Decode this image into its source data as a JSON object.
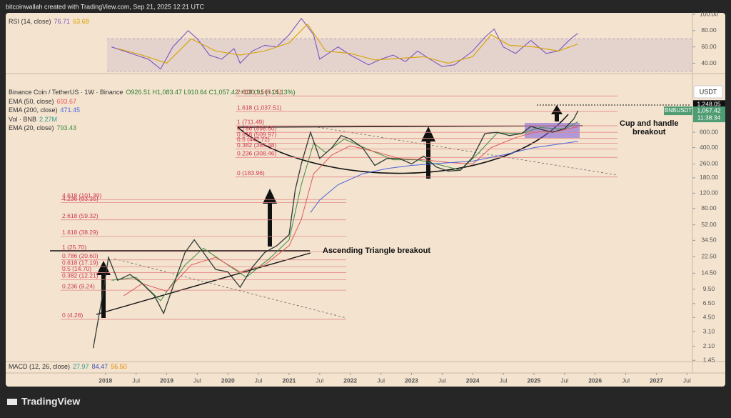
{
  "header": "bitcoinwallah created with TradingView.com, Sep 21, 2025 12:21 UTC",
  "brand": "TradingView",
  "chart_data": [
    {
      "type": "line",
      "log_scale": true,
      "grid": false,
      "ohlc": "O926.51 H1,083.47 L910.64 C1,057.42 +130.91 (+14.13%)",
      "axis_unit": "USDT",
      "xlim": [
        2016.37,
        2027.59
      ],
      "ylim": [
        1.43,
        2050
      ],
      "xticks": [
        2018,
        {
          "value": 2018.5,
          "label": "Jul"
        },
        2019,
        {
          "value": 2019.5,
          "label": "Jul"
        },
        2020,
        {
          "value": 2020.5,
          "label": "Jul"
        },
        2021,
        {
          "value": 2021.5,
          "label": "Jul"
        },
        2022,
        {
          "value": 2022.5,
          "label": "Jul"
        },
        2023,
        {
          "value": 2023.5,
          "label": "Jul"
        },
        2024,
        {
          "value": 2024.5,
          "label": "Jul"
        },
        2025,
        {
          "value": 2025.5,
          "label": "Jul"
        },
        2026,
        {
          "value": 2026.5,
          "label": "Jul"
        },
        2027,
        {
          "value": 2027.5,
          "label": "Jul"
        }
      ],
      "yticks": [
        1.45,
        {
          "value": 2.1,
          "label": "2.10"
        },
        {
          "value": 3.1,
          "label": "3.10"
        },
        {
          "value": 4.5,
          "label": "4.50"
        },
        {
          "value": 6.5,
          "label": "6.50"
        },
        {
          "value": 9.5,
          "label": "9.50"
        },
        {
          "value": 14.5,
          "label": "14.50"
        },
        {
          "value": 22.5,
          "label": "22.50"
        },
        {
          "value": 34.5,
          "label": "34.50"
        },
        {
          "value": 52,
          "label": "52.00"
        },
        {
          "value": 80,
          "label": "80.00"
        },
        {
          "value": 120,
          "label": "120.00"
        },
        {
          "value": 180,
          "label": "180.00"
        },
        {
          "value": 260,
          "label": "260.00"
        },
        {
          "value": 400,
          "label": "400.00"
        },
        {
          "value": 600,
          "label": "600.00"
        }
      ],
      "series": [
        {
          "name": "Binance Coin / TetherUS · 1W · Binance",
          "color": "#2f3b35",
          "x": [
            2017.8,
            2017.95,
            2018.05,
            2018.2,
            2018.4,
            2018.6,
            2018.8,
            2018.95,
            2019.1,
            2019.3,
            2019.45,
            2019.6,
            2019.8,
            2020.0,
            2020.2,
            2020.4,
            2020.6,
            2020.8,
            2021.0,
            2021.1,
            2021.2,
            2021.35,
            2021.5,
            2021.7,
            2021.85,
            2022.0,
            2022.2,
            2022.4,
            2022.6,
            2022.8,
            2023.0,
            2023.2,
            2023.4,
            2023.6,
            2023.8,
            2024.0,
            2024.2,
            2024.4,
            2024.6,
            2024.8,
            2024.95,
            2025.1,
            2025.3,
            2025.5,
            2025.65,
            2025.72
          ],
          "values": [
            2.0,
            8,
            22,
            12,
            14,
            11,
            8,
            5,
            10,
            25,
            35,
            25,
            16,
            15,
            10,
            17,
            25,
            30,
            40,
            130,
            260,
            600,
            300,
            400,
            550,
            500,
            400,
            250,
            300,
            300,
            260,
            320,
            240,
            215,
            220,
            310,
            580,
            600,
            550,
            580,
            700,
            650,
            600,
            660,
            850,
            1057.42
          ]
        },
        {
          "name": "EMA (50, close)",
          "color": "#e05a5a",
          "x": [
            2018.3,
            2018.6,
            2019.0,
            2019.4,
            2019.8,
            2020.2,
            2020.6,
            2021.0,
            2021.2,
            2021.4,
            2021.7,
            2022.0,
            2022.4,
            2022.8,
            2023.2,
            2023.6,
            2024.0,
            2024.3,
            2024.7,
            2025.0,
            2025.4,
            2025.72
          ],
          "values": [
            8,
            11,
            9,
            18,
            22,
            15,
            18,
            30,
            60,
            200,
            330,
            420,
            360,
            300,
            290,
            270,
            260,
            400,
            520,
            600,
            620,
            693.67
          ]
        },
        {
          "name": "EMA (200, close)",
          "color": "#4a63e0",
          "x": [
            2021.35,
            2021.5,
            2021.8,
            2022.2,
            2022.6,
            2023.0,
            2023.5,
            2024.0,
            2024.5,
            2025.0,
            2025.72
          ],
          "values": [
            72,
            100,
            150,
            200,
            230,
            250,
            265,
            280,
            330,
            400,
            471.45
          ]
        },
        {
          "name": "EMA (20, close)",
          "color": "#3f8f3f",
          "x": [
            2018.1,
            2018.5,
            2018.9,
            2019.3,
            2019.6,
            2020.0,
            2020.3,
            2020.7,
            2021.0,
            2021.2,
            2021.4,
            2021.6,
            2021.9,
            2022.3,
            2022.7,
            2023.1,
            2023.5,
            2023.8,
            2024.1,
            2024.4,
            2024.8,
            2025.1,
            2025.5,
            2025.72
          ],
          "values": [
            12,
            13,
            7,
            18,
            28,
            18,
            13,
            22,
            35,
            150,
            450,
            350,
            500,
            380,
            290,
            290,
            250,
            220,
            350,
            590,
            580,
            680,
            650,
            793.43
          ]
        }
      ],
      "volume_legend": {
        "name": "Vol · BNB",
        "value": "2.27M"
      },
      "macd_legend": {
        "name": "MACD (12, 26, close)",
        "values": [
          "27.97",
          "84.47",
          "56.50"
        ]
      },
      "fib_left": [
        {
          "value": 101.39,
          "label": "4.618 (101.39)"
        },
        {
          "value": 93.35,
          "label": "4.236 (93.35)"
        },
        {
          "value": 59.32,
          "label": "2.618 (59.32)"
        },
        {
          "value": 38.29,
          "label": "1.618 (38.29)"
        },
        {
          "value": 25.7,
          "label": "1 (25.70)"
        },
        {
          "value": 20.6,
          "label": "0.786 (20.60)"
        },
        {
          "value": 17.19,
          "label": "0.618 (17.19)"
        },
        {
          "value": 14.7,
          "label": "0.5 (14.70)"
        },
        {
          "value": 12.21,
          "label": "0.382 (12.21)"
        },
        {
          "value": 9.24,
          "label": "0.236 (9.24)"
        },
        {
          "value": 4.28,
          "label": "0 (4.28)"
        }
      ],
      "fib_right": [
        {
          "value": 1565.05,
          "label": "2.618 (1,565.05)"
        },
        {
          "value": 1037.51,
          "label": "1.618 (1,037.51)"
        },
        {
          "value": 711.49,
          "label": "1 (711.49)"
        },
        {
          "value": 598.6,
          "label": "0.786 (598.60)"
        },
        {
          "value": 509.97,
          "label": "0.618 (509.97)"
        },
        {
          "value": 447.72,
          "label": "0.5 (447.72)"
        },
        {
          "value": 385.48,
          "label": "0.382 (385.48)"
        },
        {
          "value": 308.46,
          "label": "0.236 (308.46)"
        },
        {
          "value": 183.96,
          "label": "0 (183.96)"
        }
      ],
      "price_labels": [
        {
          "value": 1248.05,
          "label": "1,248.05"
        },
        {
          "value": 1057.42,
          "label": "1,057.42",
          "name": "BNBUSDT",
          "countdown": "11:38:34"
        }
      ],
      "annotations": [
        {
          "lines": [
            "Ascending Triangle breakout"
          ]
        },
        {
          "lines": [
            "Cup and handle",
            "breakout"
          ]
        }
      ]
    },
    {
      "type": "line",
      "ylim": [
        27.3,
        101.8
      ],
      "xlim": [
        2016.37,
        2027.59
      ],
      "band": [
        30,
        70
      ],
      "yticks": [
        {
          "value": 40,
          "label": "40.00"
        },
        {
          "value": 60,
          "label": "60.00"
        },
        {
          "value": 80,
          "label": "80.00"
        },
        {
          "value": 100,
          "label": "100.00"
        }
      ],
      "series": [
        {
          "name": "RSI (14, close)",
          "color": "#7e57c2",
          "x": [
            2018.1,
            2018.3,
            2018.5,
            2018.7,
            2018.9,
            2019.1,
            2019.35,
            2019.5,
            2019.7,
            2019.9,
            2020.1,
            2020.2,
            2020.4,
            2020.6,
            2020.8,
            2021.0,
            2021.2,
            2021.4,
            2021.5,
            2021.8,
            2022.0,
            2022.3,
            2022.5,
            2022.7,
            2022.9,
            2023.1,
            2023.3,
            2023.5,
            2023.7,
            2024.0,
            2024.2,
            2024.35,
            2024.5,
            2024.7,
            2024.95,
            2025.2,
            2025.4,
            2025.6,
            2025.72
          ],
          "values": [
            60,
            55,
            50,
            45,
            33,
            60,
            80,
            70,
            50,
            45,
            58,
            40,
            55,
            62,
            60,
            75,
            95,
            75,
            45,
            60,
            50,
            38,
            45,
            50,
            42,
            55,
            45,
            36,
            38,
            55,
            72,
            82,
            60,
            52,
            68,
            52,
            55,
            70,
            76.71
          ]
        },
        {
          "color": "#d8a300",
          "x": [
            2018.2,
            2018.6,
            2019.0,
            2019.4,
            2019.8,
            2020.2,
            2020.6,
            2021.0,
            2021.3,
            2021.6,
            2022.0,
            2022.4,
            2022.8,
            2023.2,
            2023.6,
            2024.0,
            2024.3,
            2024.6,
            2025.0,
            2025.4,
            2025.72
          ],
          "values": [
            58,
            50,
            40,
            70,
            55,
            50,
            55,
            65,
            88,
            55,
            52,
            44,
            46,
            48,
            40,
            48,
            75,
            62,
            60,
            55,
            63.68
          ]
        }
      ]
    }
  ]
}
